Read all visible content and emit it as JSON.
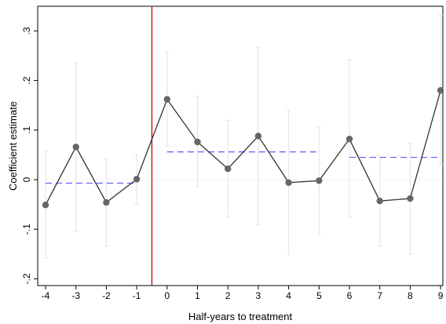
{
  "chart_data": {
    "type": "line",
    "title": "",
    "xlabel": "Half-years to treatment",
    "ylabel": "Coefficient estimate",
    "x": [
      -4,
      -3,
      -2,
      -1,
      0,
      1,
      2,
      3,
      4,
      5,
      6,
      7,
      8,
      9
    ],
    "xticks": [
      "-4",
      "-3",
      "-2",
      "-1",
      "0",
      "1",
      "2",
      "3",
      "4",
      "5",
      "6",
      "7",
      "8",
      "9"
    ],
    "yticks": [
      {
        "value": -0.2,
        "label": "-.2"
      },
      {
        "value": -0.1,
        "label": "-.1"
      },
      {
        "value": 0,
        "label": "0"
      },
      {
        "value": 0.1,
        "label": ".1"
      },
      {
        "value": 0.2,
        "label": ".2"
      },
      {
        "value": 0.3,
        "label": ".3"
      }
    ],
    "xlim": [
      -4.3,
      9.3
    ],
    "ylim": [
      -0.215,
      0.345
    ],
    "grid": false,
    "series": [
      {
        "values": [
          -0.051,
          0.066,
          -0.046,
          0.001,
          0.162,
          0.076,
          0.022,
          0.088,
          -0.006,
          -0.002,
          0.082,
          -0.043,
          -0.038,
          0.18
        ],
        "ci_low": [
          -0.158,
          -0.104,
          -0.134,
          -0.05,
          0.068,
          -0.014,
          -0.076,
          -0.09,
          -0.15,
          -0.11,
          -0.076,
          -0.134,
          -0.15,
          0.03
        ],
        "ci_high": [
          0.058,
          0.236,
          0.042,
          0.05,
          0.258,
          0.168,
          0.12,
          0.266,
          0.14,
          0.106,
          0.242,
          0.048,
          0.074,
          0.332
        ],
        "color": "#333333"
      }
    ],
    "reference_lines": [
      {
        "type": "vertical",
        "x": -0.5,
        "color": "#cc0000"
      },
      {
        "type": "horizontal",
        "y": 0,
        "color": "#dddddd",
        "style": "dotted"
      }
    ],
    "mean_segments": [
      {
        "x0": -4,
        "x1": -1,
        "y": -0.007,
        "color": "#5b5bff"
      },
      {
        "x0": 0,
        "x1": 5,
        "y": 0.056,
        "color": "#5b5bff"
      },
      {
        "x0": 6,
        "x1": 9,
        "y": 0.045,
        "color": "#5b5bff"
      }
    ]
  }
}
